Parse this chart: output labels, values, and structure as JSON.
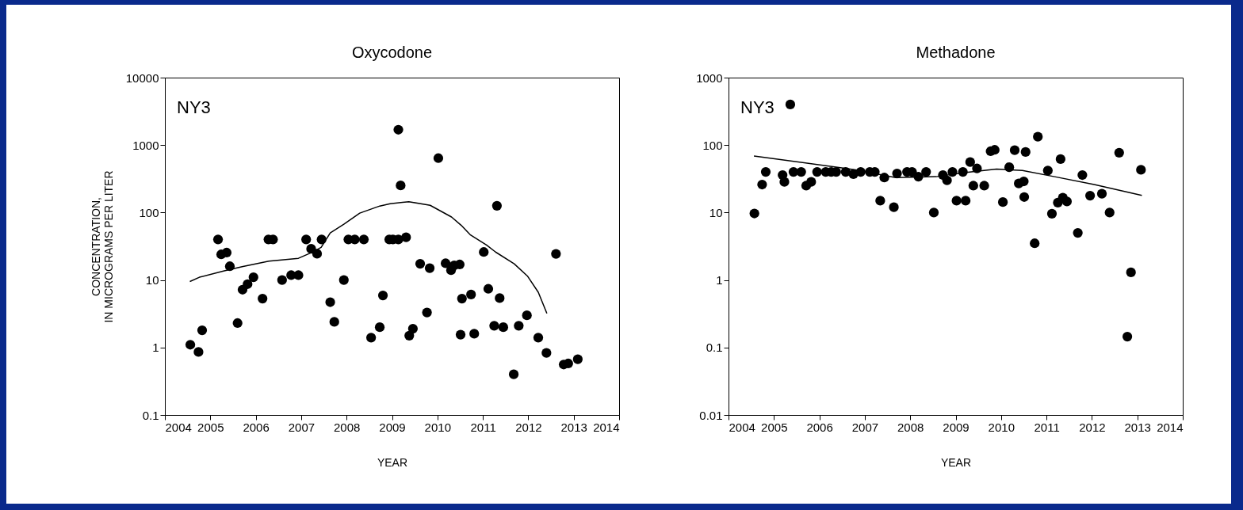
{
  "chart_data": [
    {
      "type": "scatter",
      "title": "Oxycodone",
      "xlabel": "YEAR",
      "ylabel": "CONCENTRATION,\nIN MICROGRAMS PER LITER",
      "annotations": [
        "NY3"
      ],
      "xlim": [
        2004,
        2014
      ],
      "xticks": [
        2004,
        2005,
        2006,
        2007,
        2008,
        2009,
        2010,
        2011,
        2012,
        2013,
        2014
      ],
      "ylim": [
        0.1,
        10000
      ],
      "yticks": [
        0.1,
        1,
        10,
        100,
        1000,
        10000
      ],
      "log": "y",
      "series": [
        {
          "marker": "circle",
          "color": "#000000",
          "x": [
            2004.56,
            2004.74,
            2004.82,
            2005.17,
            2005.24,
            2005.36,
            2005.43,
            2005.6,
            2005.71,
            2005.82,
            2005.95,
            2006.15,
            2006.28,
            2006.38,
            2006.58,
            2006.78,
            2006.94,
            2007.11,
            2007.22,
            2007.35,
            2007.45,
            2007.64,
            2007.73,
            2007.94,
            2008.04,
            2008.18,
            2008.38,
            2008.54,
            2008.73,
            2008.8,
            2008.94,
            2009.02,
            2009.14,
            2009.14,
            2009.19,
            2009.31,
            2009.38,
            2009.46,
            2009.62,
            2009.77,
            2009.83,
            2010.02,
            2010.18,
            2010.3,
            2010.37,
            2010.49,
            2010.51,
            2010.54,
            2010.74,
            2010.81,
            2011.02,
            2011.12,
            2011.25,
            2011.31,
            2011.37,
            2011.45,
            2011.68,
            2011.79,
            2011.97,
            2012.22,
            2012.4,
            2012.61,
            2012.78,
            2012.88,
            2013.09
          ],
          "values": [
            1.1,
            0.86,
            1.8,
            40,
            24,
            25.5,
            16,
            2.3,
            7.2,
            8.7,
            11,
            5.3,
            40,
            40,
            10,
            11.8,
            11.8,
            40,
            29,
            24.5,
            40,
            4.7,
            2.4,
            10,
            40,
            40,
            40,
            1.4,
            2,
            5.9,
            40,
            40,
            40,
            1690,
            252,
            43,
            1.5,
            1.9,
            17.4,
            3.3,
            15,
            640,
            17.7,
            14,
            16.5,
            17,
            1.55,
            5.3,
            6.1,
            1.6,
            26,
            7.4,
            2.1,
            126,
            5.4,
            2,
            0.4,
            2.1,
            3,
            1.4,
            0.83,
            24.4,
            0.56,
            0.58,
            0.67
          ]
        },
        {
          "type": "line",
          "color": "#000000",
          "x": [
            2004.55,
            2004.76,
            2005.29,
            2005.7,
            2006.29,
            2006.94,
            2007.23,
            2007.44,
            2007.64,
            2007.94,
            2008.29,
            2008.73,
            2008.96,
            2009.37,
            2009.84,
            2010.31,
            2010.52,
            2010.72,
            2011.08,
            2011.28,
            2011.69,
            2011.98,
            2012.22,
            2012.41
          ],
          "values": [
            9.5,
            11,
            13.6,
            15.8,
            19,
            21,
            25.6,
            30.5,
            50,
            67,
            98,
            125,
            135,
            145,
            128,
            86,
            65,
            47,
            33,
            26,
            17.4,
            11.5,
            6.6,
            3.2
          ]
        }
      ]
    },
    {
      "type": "scatter",
      "title": "Methadone",
      "xlabel": "YEAR",
      "annotations": [
        "NY3"
      ],
      "xlim": [
        2004,
        2014
      ],
      "xticks": [
        2004,
        2005,
        2006,
        2007,
        2008,
        2009,
        2010,
        2011,
        2012,
        2013,
        2014
      ],
      "ylim": [
        0.01,
        1000
      ],
      "yticks": [
        0.01,
        0.1,
        1,
        10,
        100,
        1000
      ],
      "log": "y",
      "series": [
        {
          "marker": "circle",
          "color": "#000000",
          "x": [
            2004.57,
            2004.74,
            2004.82,
            2005.19,
            2005.23,
            2005.36,
            2005.43,
            2005.6,
            2005.71,
            2005.82,
            2005.95,
            2006.14,
            2006.26,
            2006.37,
            2006.58,
            2006.75,
            2006.91,
            2007.11,
            2007.22,
            2007.34,
            2007.43,
            2007.64,
            2007.71,
            2007.93,
            2008.04,
            2008.18,
            2008.35,
            2008.52,
            2008.72,
            2008.81,
            2008.93,
            2009.02,
            2009.16,
            2009.22,
            2009.32,
            2009.39,
            2009.47,
            2009.63,
            2009.77,
            2009.86,
            2010.04,
            2010.18,
            2010.3,
            2010.39,
            2010.5,
            2010.51,
            2010.54,
            2010.74,
            2010.81,
            2011.03,
            2011.12,
            2011.25,
            2011.31,
            2011.36,
            2011.45,
            2011.69,
            2011.79,
            2011.96,
            2012.22,
            2012.39,
            2012.6,
            2012.78,
            2012.86,
            2013.08
          ],
          "values": [
            9.7,
            26,
            40,
            36,
            28.5,
            400,
            40,
            40,
            25,
            28.5,
            40,
            40,
            40,
            40,
            40,
            37,
            40,
            40,
            40,
            15,
            33,
            12,
            38,
            40,
            40,
            34,
            40,
            10,
            36,
            30,
            40,
            15,
            40,
            15,
            56,
            25,
            45,
            25,
            81,
            85,
            14.3,
            47,
            84,
            27,
            29,
            17,
            79,
            3.5,
            133,
            42,
            9.6,
            14,
            62,
            16.6,
            14.6,
            5,
            36,
            17.8,
            19,
            10,
            77,
            0.145,
            1.3,
            43
          ]
        },
        {
          "type": "line",
          "color": "#000000",
          "x": [
            2004.56,
            2006.4,
            2006.8,
            2007.68,
            2008.57,
            2009.19,
            2009.9,
            2010.47,
            2011.18,
            2012.05,
            2013.1
          ],
          "values": [
            69,
            47,
            43,
            33,
            34,
            39,
            44,
            42,
            34,
            26,
            18
          ]
        }
      ]
    }
  ]
}
